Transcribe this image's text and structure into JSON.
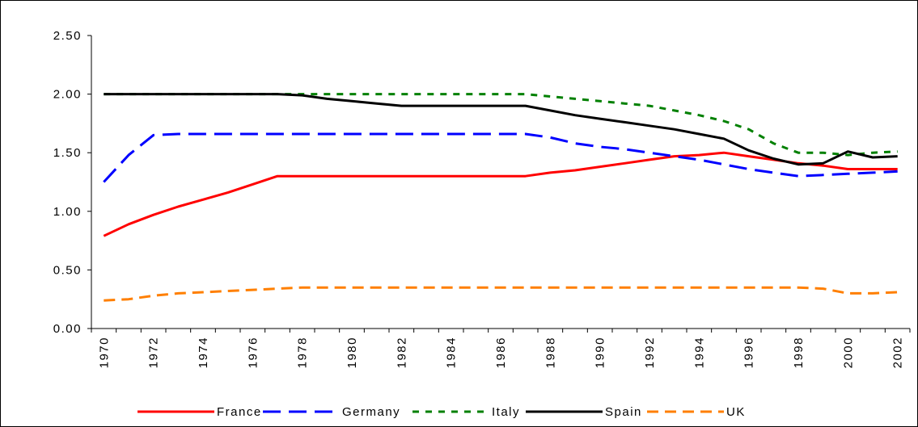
{
  "chart_data": {
    "type": "line",
    "categories": [
      "1970",
      null,
      "1972",
      null,
      "1974",
      null,
      "1976",
      null,
      "1978",
      null,
      "1980",
      null,
      "1982",
      null,
      "1984",
      null,
      "1986",
      null,
      "1988",
      null,
      "1990",
      null,
      "1992",
      null,
      "1994",
      null,
      "1996",
      null,
      "1998",
      null,
      "2000",
      null,
      "2002"
    ],
    "ylim": [
      0,
      2.5
    ],
    "yticks": [
      {
        "value": 0,
        "label": "0.00"
      },
      {
        "value": 0.5,
        "label": "0.50"
      },
      {
        "value": 1,
        "label": "1.00"
      },
      {
        "value": 1.5,
        "label": "1.50"
      },
      {
        "value": 2,
        "label": "2.00"
      },
      {
        "value": 2.5,
        "label": "2.50"
      }
    ],
    "legend": "bottom",
    "series": [
      {
        "name": "France",
        "color": "#ff0000",
        "dash": "none",
        "values": [
          0.79,
          0.89,
          0.97,
          1.04,
          1.1,
          1.16,
          1.23,
          1.3,
          1.3,
          1.3,
          1.3,
          1.3,
          1.3,
          1.3,
          1.3,
          1.3,
          1.3,
          1.3,
          1.33,
          1.35,
          1.38,
          1.41,
          1.44,
          1.47,
          1.48,
          1.5,
          1.47,
          1.44,
          1.41,
          1.39,
          1.36,
          1.36,
          1.36
        ]
      },
      {
        "name": "Germany",
        "color": "#0000ff",
        "dash": "22,10",
        "values": [
          1.25,
          1.48,
          1.65,
          1.66,
          1.66,
          1.66,
          1.66,
          1.66,
          1.66,
          1.66,
          1.66,
          1.66,
          1.66,
          1.66,
          1.66,
          1.66,
          1.66,
          1.66,
          1.63,
          1.58,
          1.55,
          1.53,
          1.5,
          1.47,
          1.44,
          1.4,
          1.36,
          1.33,
          1.3,
          1.31,
          1.32,
          1.33,
          1.34
        ]
      },
      {
        "name": "Italy",
        "color": "#008000",
        "dash": "8,8",
        "values": [
          2.0,
          2.0,
          2.0,
          2.0,
          2.0,
          2.0,
          2.0,
          2.0,
          2.0,
          2.0,
          2.0,
          2.0,
          2.0,
          2.0,
          2.0,
          2.0,
          2.0,
          2.0,
          1.98,
          1.96,
          1.94,
          1.92,
          1.9,
          1.86,
          1.82,
          1.77,
          1.7,
          1.58,
          1.5,
          1.5,
          1.48,
          1.5,
          1.51
        ]
      },
      {
        "name": "Spain",
        "color": "#000000",
        "dash": "none",
        "values": [
          2.0,
          2.0,
          2.0,
          2.0,
          2.0,
          2.0,
          2.0,
          2.0,
          1.99,
          1.96,
          1.94,
          1.92,
          1.9,
          1.9,
          1.9,
          1.9,
          1.9,
          1.9,
          1.86,
          1.82,
          1.79,
          1.76,
          1.73,
          1.7,
          1.66,
          1.62,
          1.52,
          1.45,
          1.4,
          1.41,
          1.51,
          1.46,
          1.47
        ]
      },
      {
        "name": "UK",
        "color": "#ff7f00",
        "dash": "14,8",
        "values": [
          0.24,
          0.25,
          0.28,
          0.3,
          0.31,
          0.32,
          0.33,
          0.34,
          0.35,
          0.35,
          0.35,
          0.35,
          0.35,
          0.35,
          0.35,
          0.35,
          0.35,
          0.35,
          0.35,
          0.35,
          0.35,
          0.35,
          0.35,
          0.35,
          0.35,
          0.35,
          0.35,
          0.35,
          0.35,
          0.34,
          0.3,
          0.3,
          0.31
        ]
      }
    ]
  }
}
